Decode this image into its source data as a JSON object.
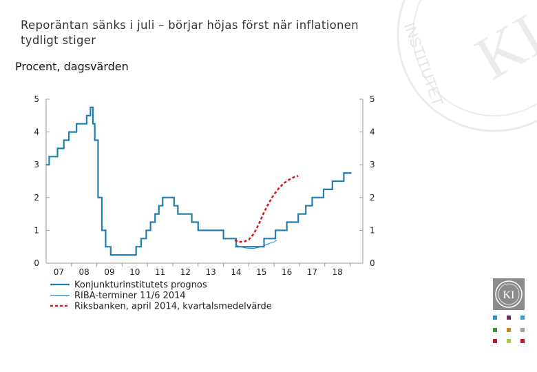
{
  "title": "Reporäntan sänks i juli – börjar höjas först när inflationen tydligt stiger",
  "subtitle": "Procent, dagsvärden",
  "watermark_text": "KONJUNKTURINSTITUTET",
  "logo_text": "KI",
  "colors": {
    "prognos": "#1f7fb2",
    "riba": "#1f7fb2",
    "riksbanken": "#d7191c",
    "axis": "#9a9a9a",
    "squares": [
      "#2a8fc7",
      "#6a2a5e",
      "#3a9ad4",
      "#3f8f3a",
      "#c18a1e",
      "#9aa0a4",
      "#c01c2a",
      "#a6c94a",
      "#c01c2a"
    ]
  },
  "chart_data": {
    "type": "line",
    "title": "Reporäntan sänks i juli – börjar höjas först när inflationen tydligt stiger",
    "ylabel": "Procent, dagsvärden",
    "xlabel": "",
    "xlim": [
      2006.5,
      2019.0
    ],
    "ylim": [
      0,
      5
    ],
    "yticks": [
      0,
      1,
      2,
      3,
      4,
      5
    ],
    "xtick_labels": [
      {
        "label": "07",
        "x": 2007.0
      },
      {
        "label": "08",
        "x": 2008.0
      },
      {
        "label": "09",
        "x": 2009.0
      },
      {
        "label": "10",
        "x": 2010.0
      },
      {
        "label": "11",
        "x": 2011.0
      },
      {
        "label": "12",
        "x": 2012.0
      },
      {
        "label": "13",
        "x": 2013.0
      },
      {
        "label": "14",
        "x": 2014.0
      },
      {
        "label": "15",
        "x": 2015.0
      },
      {
        "label": "16",
        "x": 2016.0
      },
      {
        "label": "17",
        "x": 2017.0
      },
      {
        "label": "18",
        "x": 2018.0
      }
    ],
    "grid": false,
    "legend_position": "bottom-left",
    "series": [
      {
        "name": "Konjunkturinstitutets prognos",
        "style": "step",
        "points": [
          [
            2006.5,
            3.0
          ],
          [
            2006.62,
            3.25
          ],
          [
            2006.95,
            3.5
          ],
          [
            2007.2,
            3.75
          ],
          [
            2007.4,
            4.0
          ],
          [
            2007.7,
            4.25
          ],
          [
            2008.1,
            4.5
          ],
          [
            2008.25,
            4.75
          ],
          [
            2008.35,
            4.25
          ],
          [
            2008.42,
            3.75
          ],
          [
            2008.55,
            2.0
          ],
          [
            2008.7,
            1.0
          ],
          [
            2008.85,
            0.5
          ],
          [
            2009.05,
            0.25
          ],
          [
            2010.05,
            0.5
          ],
          [
            2010.25,
            0.75
          ],
          [
            2010.45,
            1.0
          ],
          [
            2010.62,
            1.25
          ],
          [
            2010.8,
            1.5
          ],
          [
            2010.95,
            1.75
          ],
          [
            2011.1,
            2.0
          ],
          [
            2011.55,
            1.75
          ],
          [
            2011.7,
            1.5
          ],
          [
            2012.25,
            1.25
          ],
          [
            2012.5,
            1.0
          ],
          [
            2013.5,
            0.75
          ],
          [
            2014.0,
            0.5
          ],
          [
            2014.7,
            0.5
          ],
          [
            2015.1,
            0.75
          ],
          [
            2015.55,
            1.0
          ],
          [
            2016.0,
            1.25
          ],
          [
            2016.45,
            1.5
          ],
          [
            2016.75,
            1.75
          ],
          [
            2017.0,
            2.0
          ],
          [
            2017.45,
            2.25
          ],
          [
            2017.8,
            2.5
          ],
          [
            2018.25,
            2.75
          ],
          [
            2018.55,
            2.75
          ]
        ]
      },
      {
        "name": "RIBA-terminer 11/6 2014",
        "style": "line",
        "points": [
          [
            2014.0,
            0.55
          ],
          [
            2014.15,
            0.5
          ],
          [
            2014.4,
            0.46
          ],
          [
            2014.7,
            0.45
          ],
          [
            2015.0,
            0.5
          ],
          [
            2015.3,
            0.6
          ],
          [
            2015.5,
            0.65
          ],
          [
            2015.6,
            0.7
          ]
        ]
      },
      {
        "name": "Riksbanken, april 2014, kvartalsmedelvärde",
        "style": "dashed",
        "points": [
          [
            2013.95,
            0.7
          ],
          [
            2014.1,
            0.65
          ],
          [
            2014.3,
            0.65
          ],
          [
            2014.5,
            0.72
          ],
          [
            2014.7,
            0.9
          ],
          [
            2014.9,
            1.2
          ],
          [
            2015.1,
            1.55
          ],
          [
            2015.3,
            1.85
          ],
          [
            2015.5,
            2.1
          ],
          [
            2015.7,
            2.3
          ],
          [
            2015.9,
            2.45
          ],
          [
            2016.1,
            2.55
          ],
          [
            2016.3,
            2.63
          ],
          [
            2016.45,
            2.66
          ]
        ]
      }
    ]
  }
}
